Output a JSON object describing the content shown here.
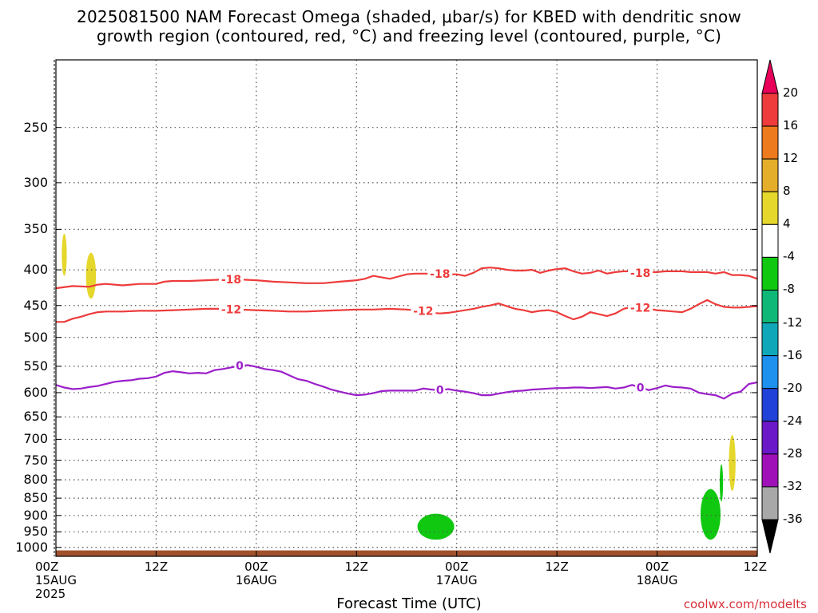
{
  "chart_data": {
    "type": "heatmap",
    "title": "2025081500 NAM Forecast Omega (shaded, μbar/s) for KBED with dendritic snow",
    "subtitle": "growth region (contoured, red, °C) and freezing level (contoured, purple, °C)",
    "xlabel": "Forecast Time (UTC)",
    "ylabel": "",
    "source": "coolwx.com/modelts",
    "x_ticks": [
      {
        "hours": 0,
        "label": "00Z",
        "label2": "15AUG",
        "label3": "2025"
      },
      {
        "hours": 12,
        "label": "12Z",
        "label2": "",
        "label3": ""
      },
      {
        "hours": 24,
        "label": "00Z",
        "label2": "16AUG",
        "label3": ""
      },
      {
        "hours": 36,
        "label": "12Z",
        "label2": "",
        "label3": ""
      },
      {
        "hours": 48,
        "label": "00Z",
        "label2": "17AUG",
        "label3": ""
      },
      {
        "hours": 60,
        "label": "12Z",
        "label2": "",
        "label3": ""
      },
      {
        "hours": 72,
        "label": "00Z",
        "label2": "18AUG",
        "label3": ""
      },
      {
        "hours": 84,
        "label": "12Z",
        "label2": "",
        "label3": ""
      }
    ],
    "xlim": [
      0,
      84
    ],
    "y_ticks": [
      250,
      300,
      350,
      400,
      450,
      500,
      550,
      600,
      650,
      700,
      750,
      800,
      850,
      900,
      950,
      1000
    ],
    "ylim": [
      200,
      1030
    ],
    "y_scale": "log",
    "y_inverted": true,
    "grid": true,
    "colorbar": {
      "orientation": "vertical",
      "position": "right",
      "labels": [
        "20",
        "16",
        "12",
        "8",
        "4",
        "-4",
        "-8",
        "-12",
        "-16",
        "-20",
        "-24",
        "-28",
        "-32",
        "-36"
      ],
      "levels": [
        20,
        16,
        12,
        8,
        4,
        -4,
        -8,
        -12,
        -16,
        -20,
        -24,
        -28,
        -32,
        -36
      ],
      "colors": [
        "#e8005a",
        "#ee3b3b",
        "#ee7a1e",
        "#e4ad2a",
        "#e6d72c",
        "#ffffff",
        "#10c810",
        "#10b878",
        "#10a8b8",
        "#1e90ee",
        "#2042d8",
        "#6a18c8",
        "#a010b8",
        "#a8a8a8",
        "#000000"
      ]
    },
    "contours": [
      {
        "name": "-18",
        "color": "#ee3b3b",
        "points": [
          [
            0,
            425
          ],
          [
            2,
            422
          ],
          [
            4,
            423
          ],
          [
            5,
            420
          ],
          [
            6,
            419
          ],
          [
            8,
            421
          ],
          [
            10,
            419
          ],
          [
            12,
            419
          ],
          [
            13,
            416
          ],
          [
            14,
            415
          ],
          [
            16,
            415
          ],
          [
            18,
            414
          ],
          [
            20,
            413
          ],
          [
            22,
            413
          ],
          [
            24,
            414
          ],
          [
            26,
            416
          ],
          [
            28,
            417
          ],
          [
            30,
            418
          ],
          [
            32,
            418
          ],
          [
            34,
            416
          ],
          [
            36,
            414
          ],
          [
            37,
            412
          ],
          [
            38,
            408
          ],
          [
            39,
            410
          ],
          [
            40,
            412
          ],
          [
            41,
            409
          ],
          [
            42,
            406
          ],
          [
            43,
            405
          ],
          [
            44,
            405
          ],
          [
            45,
            405
          ],
          [
            46,
            405
          ],
          [
            47,
            406
          ],
          [
            48,
            406
          ],
          [
            49,
            408
          ],
          [
            50,
            404
          ],
          [
            51,
            398
          ],
          [
            52,
            397
          ],
          [
            53,
            398
          ],
          [
            54,
            400
          ],
          [
            55,
            401
          ],
          [
            56,
            401
          ],
          [
            57,
            400
          ],
          [
            58,
            404
          ],
          [
            59,
            401
          ],
          [
            60,
            399
          ],
          [
            61,
            398
          ],
          [
            62,
            402
          ],
          [
            63,
            405
          ],
          [
            64,
            404
          ],
          [
            65,
            401
          ],
          [
            66,
            405
          ],
          [
            67,
            403
          ],
          [
            68,
            402
          ],
          [
            69,
            402
          ],
          [
            70,
            404
          ],
          [
            71,
            403
          ],
          [
            72,
            403
          ],
          [
            73,
            402
          ],
          [
            74,
            402
          ],
          [
            75,
            402
          ],
          [
            76,
            403
          ],
          [
            77,
            403
          ],
          [
            78,
            403
          ],
          [
            79,
            405
          ],
          [
            80,
            403
          ],
          [
            81,
            407
          ],
          [
            82,
            407
          ],
          [
            83,
            408
          ],
          [
            84,
            412
          ]
        ],
        "labels": [
          {
            "x": 21,
            "text": "-18"
          },
          {
            "x": 46,
            "text": "-18"
          },
          {
            "x": 70,
            "text": "-18"
          }
        ]
      },
      {
        "name": "-12",
        "color": "#ee3b3b",
        "points": [
          [
            0,
            475
          ],
          [
            1,
            475
          ],
          [
            2,
            470
          ],
          [
            3,
            467
          ],
          [
            4,
            463
          ],
          [
            5,
            460
          ],
          [
            6,
            459
          ],
          [
            8,
            459
          ],
          [
            10,
            458
          ],
          [
            12,
            458
          ],
          [
            14,
            457
          ],
          [
            16,
            456
          ],
          [
            18,
            455
          ],
          [
            20,
            455
          ],
          [
            22,
            456
          ],
          [
            24,
            457
          ],
          [
            26,
            458
          ],
          [
            28,
            459
          ],
          [
            30,
            459
          ],
          [
            32,
            458
          ],
          [
            34,
            457
          ],
          [
            36,
            456
          ],
          [
            38,
            456
          ],
          [
            40,
            455
          ],
          [
            42,
            456
          ],
          [
            44,
            458
          ],
          [
            45,
            461
          ],
          [
            46,
            462
          ],
          [
            47,
            461
          ],
          [
            48,
            459
          ],
          [
            49,
            457
          ],
          [
            50,
            455
          ],
          [
            51,
            452
          ],
          [
            52,
            450
          ],
          [
            53,
            447
          ],
          [
            54,
            451
          ],
          [
            55,
            455
          ],
          [
            56,
            457
          ],
          [
            57,
            460
          ],
          [
            58,
            458
          ],
          [
            59,
            457
          ],
          [
            60,
            460
          ],
          [
            61,
            466
          ],
          [
            62,
            471
          ],
          [
            63,
            467
          ],
          [
            64,
            460
          ],
          [
            65,
            463
          ],
          [
            66,
            466
          ],
          [
            67,
            462
          ],
          [
            68,
            455
          ],
          [
            69,
            452
          ],
          [
            70,
            453
          ],
          [
            71,
            455
          ],
          [
            72,
            457
          ],
          [
            73,
            458
          ],
          [
            74,
            459
          ],
          [
            75,
            460
          ],
          [
            76,
            455
          ],
          [
            77,
            448
          ],
          [
            78,
            442
          ],
          [
            79,
            448
          ],
          [
            80,
            452
          ],
          [
            81,
            453
          ],
          [
            82,
            453
          ],
          [
            84,
            451
          ]
        ],
        "labels": [
          {
            "x": 21,
            "text": "-12"
          },
          {
            "x": 44,
            "text": "-12"
          },
          {
            "x": 70,
            "text": "-12"
          }
        ]
      },
      {
        "name": "0",
        "color": "#9b1fc9",
        "points": [
          [
            0,
            585
          ],
          [
            1,
            590
          ],
          [
            2,
            593
          ],
          [
            3,
            592
          ],
          [
            4,
            589
          ],
          [
            5,
            587
          ],
          [
            6,
            583
          ],
          [
            7,
            579
          ],
          [
            8,
            577
          ],
          [
            9,
            576
          ],
          [
            10,
            573
          ],
          [
            11,
            572
          ],
          [
            12,
            569
          ],
          [
            13,
            562
          ],
          [
            14,
            559
          ],
          [
            15,
            561
          ],
          [
            16,
            563
          ],
          [
            17,
            562
          ],
          [
            18,
            563
          ],
          [
            19,
            557
          ],
          [
            20,
            555
          ],
          [
            21,
            552
          ],
          [
            22,
            549
          ],
          [
            23,
            548
          ],
          [
            24,
            551
          ],
          [
            25,
            555
          ],
          [
            26,
            557
          ],
          [
            27,
            560
          ],
          [
            28,
            567
          ],
          [
            29,
            574
          ],
          [
            30,
            577
          ],
          [
            31,
            583
          ],
          [
            32,
            588
          ],
          [
            33,
            594
          ],
          [
            34,
            598
          ],
          [
            35,
            602
          ],
          [
            36,
            605
          ],
          [
            37,
            604
          ],
          [
            38,
            601
          ],
          [
            39,
            597
          ],
          [
            40,
            596
          ],
          [
            41,
            596
          ],
          [
            42,
            596
          ],
          [
            43,
            596
          ],
          [
            44,
            592
          ],
          [
            45,
            594
          ],
          [
            46,
            595
          ],
          [
            47,
            593
          ],
          [
            48,
            596
          ],
          [
            49,
            598
          ],
          [
            50,
            601
          ],
          [
            51,
            605
          ],
          [
            52,
            605
          ],
          [
            53,
            602
          ],
          [
            54,
            599
          ],
          [
            55,
            597
          ],
          [
            56,
            596
          ],
          [
            57,
            594
          ],
          [
            58,
            593
          ],
          [
            59,
            592
          ],
          [
            60,
            591
          ],
          [
            61,
            591
          ],
          [
            62,
            590
          ],
          [
            63,
            590
          ],
          [
            64,
            591
          ],
          [
            65,
            590
          ],
          [
            66,
            589
          ],
          [
            67,
            592
          ],
          [
            68,
            590
          ],
          [
            69,
            585
          ],
          [
            70,
            590
          ],
          [
            71,
            595
          ],
          [
            72,
            591
          ],
          [
            73,
            586
          ],
          [
            74,
            589
          ],
          [
            75,
            590
          ],
          [
            76,
            592
          ],
          [
            77,
            600
          ],
          [
            78,
            603
          ],
          [
            79,
            605
          ],
          [
            80,
            612
          ],
          [
            81,
            602
          ],
          [
            82,
            598
          ],
          [
            83,
            583
          ],
          [
            84,
            580
          ]
        ],
        "labels": [
          {
            "x": 22,
            "text": "0"
          },
          {
            "x": 46,
            "text": "0"
          },
          {
            "x": 70,
            "text": "0"
          }
        ]
      }
    ],
    "omega_areas": [
      {
        "value": 6,
        "color": "#e6d72c",
        "x_center": 1,
        "x_halfwidth": 0.3,
        "p_top": 355,
        "p_bottom": 408
      },
      {
        "value": 6,
        "color": "#e6d72c",
        "x_center": 4.2,
        "x_halfwidth": 0.6,
        "p_top": 378,
        "p_bottom": 440
      },
      {
        "value": 6,
        "color": "#e6d72c",
        "x_center": 81,
        "x_halfwidth": 0.4,
        "p_top": 690,
        "p_bottom": 830
      },
      {
        "value": -6,
        "color": "#10c810",
        "x_center": 78.4,
        "x_halfwidth": 1.2,
        "p_top": 825,
        "p_bottom": 975
      },
      {
        "value": -6,
        "color": "#10c810",
        "x_center": 79.7,
        "x_halfwidth": 0.2,
        "p_top": 760,
        "p_bottom": 860
      },
      {
        "value": -6,
        "color": "#10c810",
        "x_center": 45.5,
        "x_halfwidth": 2.2,
        "p_top": 895,
        "p_bottom": 975
      }
    ],
    "surface": {
      "color": "#a0522d",
      "p_top": 1010
    }
  }
}
